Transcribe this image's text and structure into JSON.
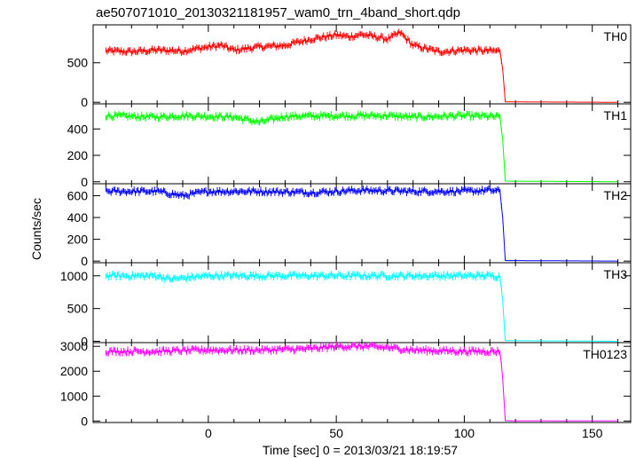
{
  "chart_data": {
    "type": "line",
    "title": "ae507071010_20130321181957_wam0_trn_4band_short.qdp",
    "xlabel": "Time [sec] 0 = 2013/03/21 18:19:57",
    "ylabel": "Counts/sec",
    "xlim": [
      -45,
      165
    ],
    "xticks": [
      0,
      50,
      100,
      150
    ],
    "step_time": 116,
    "panels": [
      {
        "name": "TH0",
        "color": "#ff0000",
        "ylim": [
          -20,
          980
        ],
        "yticks": [
          0,
          500
        ],
        "points": [
          [
            -40,
            650
          ],
          [
            -30,
            640
          ],
          [
            -20,
            660
          ],
          [
            -10,
            650
          ],
          [
            0,
            700
          ],
          [
            5,
            720
          ],
          [
            10,
            660
          ],
          [
            20,
            700
          ],
          [
            30,
            720
          ],
          [
            40,
            800
          ],
          [
            50,
            850
          ],
          [
            55,
            830
          ],
          [
            60,
            860
          ],
          [
            70,
            800
          ],
          [
            75,
            880
          ],
          [
            80,
            720
          ],
          [
            90,
            640
          ],
          [
            100,
            660
          ],
          [
            110,
            650
          ],
          [
            114,
            650
          ],
          [
            115,
            420
          ],
          [
            116,
            5
          ],
          [
            160,
            0
          ]
        ]
      },
      {
        "name": "TH1",
        "color": "#00ff00",
        "ylim": [
          -15,
          590
        ],
        "yticks": [
          0,
          200,
          400
        ],
        "points": [
          [
            -40,
            500
          ],
          [
            -20,
            490
          ],
          [
            -10,
            500
          ],
          [
            0,
            495
          ],
          [
            10,
            490
          ],
          [
            20,
            450
          ],
          [
            30,
            495
          ],
          [
            50,
            500
          ],
          [
            70,
            500
          ],
          [
            80,
            490
          ],
          [
            100,
            500
          ],
          [
            110,
            495
          ],
          [
            114,
            490
          ],
          [
            115,
            320
          ],
          [
            116,
            5
          ],
          [
            160,
            0
          ]
        ]
      },
      {
        "name": "TH2",
        "color": "#0000ff",
        "ylim": [
          -15,
          710
        ],
        "yticks": [
          0,
          200,
          400,
          600
        ],
        "points": [
          [
            -40,
            640
          ],
          [
            -20,
            640
          ],
          [
            -10,
            600
          ],
          [
            0,
            640
          ],
          [
            20,
            640
          ],
          [
            40,
            630
          ],
          [
            60,
            650
          ],
          [
            80,
            640
          ],
          [
            100,
            640
          ],
          [
            110,
            650
          ],
          [
            114,
            640
          ],
          [
            115,
            400
          ],
          [
            116,
            5
          ],
          [
            160,
            0
          ]
        ]
      },
      {
        "name": "TH3",
        "color": "#00ffff",
        "ylim": [
          -20,
          1200
        ],
        "yticks": [
          0,
          500,
          1000
        ],
        "points": [
          [
            -40,
            1000
          ],
          [
            -20,
            1000
          ],
          [
            -15,
            950
          ],
          [
            0,
            1000
          ],
          [
            20,
            1000
          ],
          [
            40,
            1000
          ],
          [
            60,
            1000
          ],
          [
            80,
            1000
          ],
          [
            100,
            1000
          ],
          [
            110,
            1000
          ],
          [
            114,
            990
          ],
          [
            115,
            620
          ],
          [
            116,
            10
          ],
          [
            160,
            0
          ]
        ]
      },
      {
        "name": "TH0123",
        "color": "#ff00ff",
        "ylim": [
          -60,
          3150
        ],
        "yticks": [
          0,
          1000,
          2000,
          3000
        ],
        "points": [
          [
            -40,
            2800
          ],
          [
            -20,
            2800
          ],
          [
            0,
            2850
          ],
          [
            20,
            2850
          ],
          [
            40,
            2900
          ],
          [
            50,
            3000
          ],
          [
            60,
            3000
          ],
          [
            70,
            2950
          ],
          [
            80,
            2850
          ],
          [
            100,
            2800
          ],
          [
            110,
            2800
          ],
          [
            114,
            2790
          ],
          [
            115,
            1700
          ],
          [
            116,
            10
          ],
          [
            160,
            0
          ]
        ]
      }
    ]
  }
}
